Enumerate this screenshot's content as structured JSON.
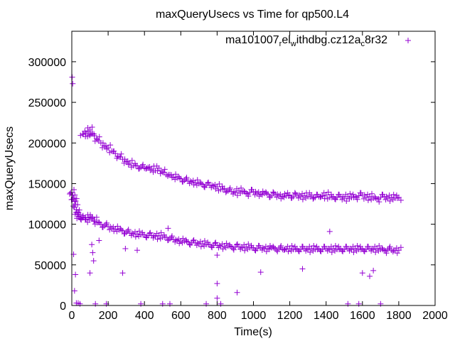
{
  "chart_data": {
    "type": "scatter",
    "title": "maxQueryUsecs vs Time for qp500.L4",
    "xlabel": "Time(s)",
    "ylabel": "maxQueryUsecs",
    "xlim": [
      0,
      2000
    ],
    "ylim": [
      0,
      337500
    ],
    "xticks": [
      0,
      200,
      400,
      600,
      800,
      1000,
      1200,
      1400,
      1600,
      1800,
      2000
    ],
    "yticks": [
      0,
      50000,
      100000,
      150000,
      200000,
      250000,
      300000
    ],
    "grid": false,
    "legend_position": "top-right",
    "series": [
      {
        "name": "ma101007_rel_withdbg.cz12a_c8r32",
        "color": "#9400d3",
        "marker": "plus",
        "upper_band": [
          [
            60,
            211000
          ],
          [
            75,
            208000
          ],
          [
            90,
            214000
          ],
          [
            100,
            216000
          ],
          [
            110,
            211000
          ],
          [
            125,
            209000
          ],
          [
            140,
            204000
          ],
          [
            160,
            200000
          ],
          [
            180,
            196000
          ],
          [
            200,
            194000
          ],
          [
            220,
            190000
          ],
          [
            240,
            187000
          ],
          [
            260,
            183000
          ],
          [
            280,
            180000
          ],
          [
            300,
            177000
          ],
          [
            320,
            175000
          ],
          [
            340,
            172000
          ],
          [
            360,
            172000
          ],
          [
            380,
            170000
          ],
          [
            400,
            169000
          ],
          [
            420,
            170000
          ],
          [
            440,
            168000
          ],
          [
            460,
            166000
          ],
          [
            480,
            169000
          ],
          [
            500,
            164000
          ],
          [
            520,
            161000
          ],
          [
            540,
            161000
          ],
          [
            560,
            158000
          ],
          [
            580,
            157000
          ],
          [
            600,
            156000
          ],
          [
            620,
            154000
          ],
          [
            640,
            153000
          ],
          [
            660,
            152000
          ],
          [
            680,
            151000
          ],
          [
            700,
            150000
          ],
          [
            720,
            149000
          ],
          [
            740,
            148000
          ],
          [
            760,
            148000
          ],
          [
            780,
            147000
          ],
          [
            800,
            146000
          ],
          [
            820,
            143000
          ],
          [
            840,
            144000
          ],
          [
            860,
            141000
          ],
          [
            880,
            140000
          ],
          [
            900,
            139000
          ],
          [
            920,
            141000
          ],
          [
            940,
            140000
          ],
          [
            960,
            138000
          ],
          [
            980,
            139000
          ],
          [
            1000,
            140000
          ],
          [
            1020,
            138000
          ],
          [
            1040,
            137000
          ],
          [
            1060,
            138000
          ],
          [
            1080,
            137000
          ],
          [
            1100,
            135000
          ],
          [
            1120,
            137000
          ],
          [
            1140,
            135000
          ],
          [
            1160,
            134000
          ],
          [
            1180,
            135000
          ],
          [
            1200,
            136000
          ],
          [
            1220,
            134000
          ],
          [
            1240,
            136000
          ],
          [
            1260,
            134000
          ],
          [
            1280,
            135000
          ],
          [
            1300,
            134000
          ],
          [
            1320,
            136000
          ],
          [
            1340,
            133000
          ],
          [
            1360,
            134000
          ],
          [
            1380,
            135000
          ],
          [
            1400,
            136000
          ],
          [
            1420,
            133000
          ],
          [
            1440,
            134000
          ],
          [
            1460,
            133000
          ],
          [
            1480,
            134000
          ],
          [
            1500,
            132000
          ],
          [
            1520,
            134000
          ],
          [
            1540,
            133000
          ],
          [
            1560,
            134000
          ],
          [
            1580,
            135000
          ],
          [
            1600,
            136000
          ],
          [
            1620,
            133000
          ],
          [
            1640,
            134000
          ],
          [
            1660,
            132000
          ],
          [
            1680,
            131000
          ],
          [
            1700,
            133000
          ],
          [
            1720,
            134000
          ],
          [
            1740,
            132000
          ],
          [
            1760,
            133000
          ],
          [
            1780,
            132000
          ],
          [
            1800,
            133000
          ]
        ],
        "lower_band": [
          [
            0,
            139000
          ],
          [
            5,
            136000
          ],
          [
            10,
            132000
          ],
          [
            15,
            128000
          ],
          [
            20,
            124000
          ],
          [
            25,
            118000
          ],
          [
            30,
            114000
          ],
          [
            35,
            112000
          ],
          [
            40,
            109000
          ],
          [
            50,
            107000
          ],
          [
            60,
            108000
          ],
          [
            75,
            106000
          ],
          [
            90,
            108000
          ],
          [
            100,
            109000
          ],
          [
            110,
            107000
          ],
          [
            125,
            105000
          ],
          [
            140,
            102000
          ],
          [
            160,
            100000
          ],
          [
            180,
            98000
          ],
          [
            200,
            97000
          ],
          [
            220,
            95000
          ],
          [
            240,
            94000
          ],
          [
            260,
            93000
          ],
          [
            280,
            92000
          ],
          [
            300,
            90000
          ],
          [
            320,
            89000
          ],
          [
            340,
            88000
          ],
          [
            360,
            88000
          ],
          [
            380,
            87000
          ],
          [
            400,
            87000
          ],
          [
            420,
            86000
          ],
          [
            440,
            86000
          ],
          [
            460,
            85000
          ],
          [
            480,
            86000
          ],
          [
            500,
            84000
          ],
          [
            520,
            84000
          ],
          [
            540,
            82000
          ],
          [
            560,
            81000
          ],
          [
            580,
            80000
          ],
          [
            600,
            79000
          ],
          [
            620,
            79000
          ],
          [
            640,
            78000
          ],
          [
            660,
            77000
          ],
          [
            680,
            77000
          ],
          [
            700,
            76000
          ],
          [
            720,
            76000
          ],
          [
            740,
            75000
          ],
          [
            760,
            75000
          ],
          [
            780,
            74000
          ],
          [
            800,
            74000
          ],
          [
            820,
            73000
          ],
          [
            840,
            73000
          ],
          [
            860,
            73000
          ],
          [
            880,
            72000
          ],
          [
            900,
            72000
          ],
          [
            920,
            72000
          ],
          [
            940,
            71000
          ],
          [
            960,
            72000
          ],
          [
            980,
            71000
          ],
          [
            1000,
            71000
          ],
          [
            1020,
            70000
          ],
          [
            1040,
            71000
          ],
          [
            1060,
            70000
          ],
          [
            1080,
            70000
          ],
          [
            1100,
            71000
          ],
          [
            1120,
            70000
          ],
          [
            1140,
            70000
          ],
          [
            1160,
            69000
          ],
          [
            1180,
            70000
          ],
          [
            1200,
            70000
          ],
          [
            1220,
            69000
          ],
          [
            1240,
            70000
          ],
          [
            1260,
            69000
          ],
          [
            1280,
            70000
          ],
          [
            1300,
            69000
          ],
          [
            1320,
            70000
          ],
          [
            1340,
            69000
          ],
          [
            1360,
            70000
          ],
          [
            1380,
            69000
          ],
          [
            1400,
            70000
          ],
          [
            1420,
            69000
          ],
          [
            1440,
            70000
          ],
          [
            1460,
            69000
          ],
          [
            1480,
            70000
          ],
          [
            1500,
            69000
          ],
          [
            1520,
            70000
          ],
          [
            1540,
            69000
          ],
          [
            1560,
            70000
          ],
          [
            1580,
            69000
          ],
          [
            1600,
            70000
          ],
          [
            1620,
            69000
          ],
          [
            1640,
            70000
          ],
          [
            1660,
            69000
          ],
          [
            1680,
            70000
          ],
          [
            1700,
            69000
          ],
          [
            1720,
            68000
          ],
          [
            1740,
            69000
          ],
          [
            1760,
            68000
          ],
          [
            1780,
            68000
          ],
          [
            1800,
            68000
          ]
        ],
        "outliers": [
          [
            2,
            281000
          ],
          [
            5,
            273000
          ],
          [
            10,
            63000
          ],
          [
            15,
            18000
          ],
          [
            20,
            38000
          ],
          [
            25,
            3000
          ],
          [
            35,
            3000
          ],
          [
            45,
            2000
          ],
          [
            100,
            40000
          ],
          [
            110,
            75000
          ],
          [
            115,
            65000
          ],
          [
            120,
            55000
          ],
          [
            130,
            2000
          ],
          [
            150,
            80000
          ],
          [
            190,
            2000
          ],
          [
            280,
            40000
          ],
          [
            295,
            70000
          ],
          [
            360,
            68000
          ],
          [
            380,
            2000
          ],
          [
            500,
            2000
          ],
          [
            530,
            95000
          ],
          [
            540,
            2000
          ],
          [
            740,
            2000
          ],
          [
            800,
            62000
          ],
          [
            800,
            27000
          ],
          [
            800,
            9000
          ],
          [
            820,
            2000
          ],
          [
            910,
            16000
          ],
          [
            1040,
            41000
          ],
          [
            1270,
            45000
          ],
          [
            1420,
            91000
          ],
          [
            1520,
            2000
          ],
          [
            1580,
            2000
          ],
          [
            1600,
            40000
          ],
          [
            1640,
            36000
          ],
          [
            1660,
            43000
          ],
          [
            1700,
            2000
          ]
        ]
      }
    ]
  }
}
